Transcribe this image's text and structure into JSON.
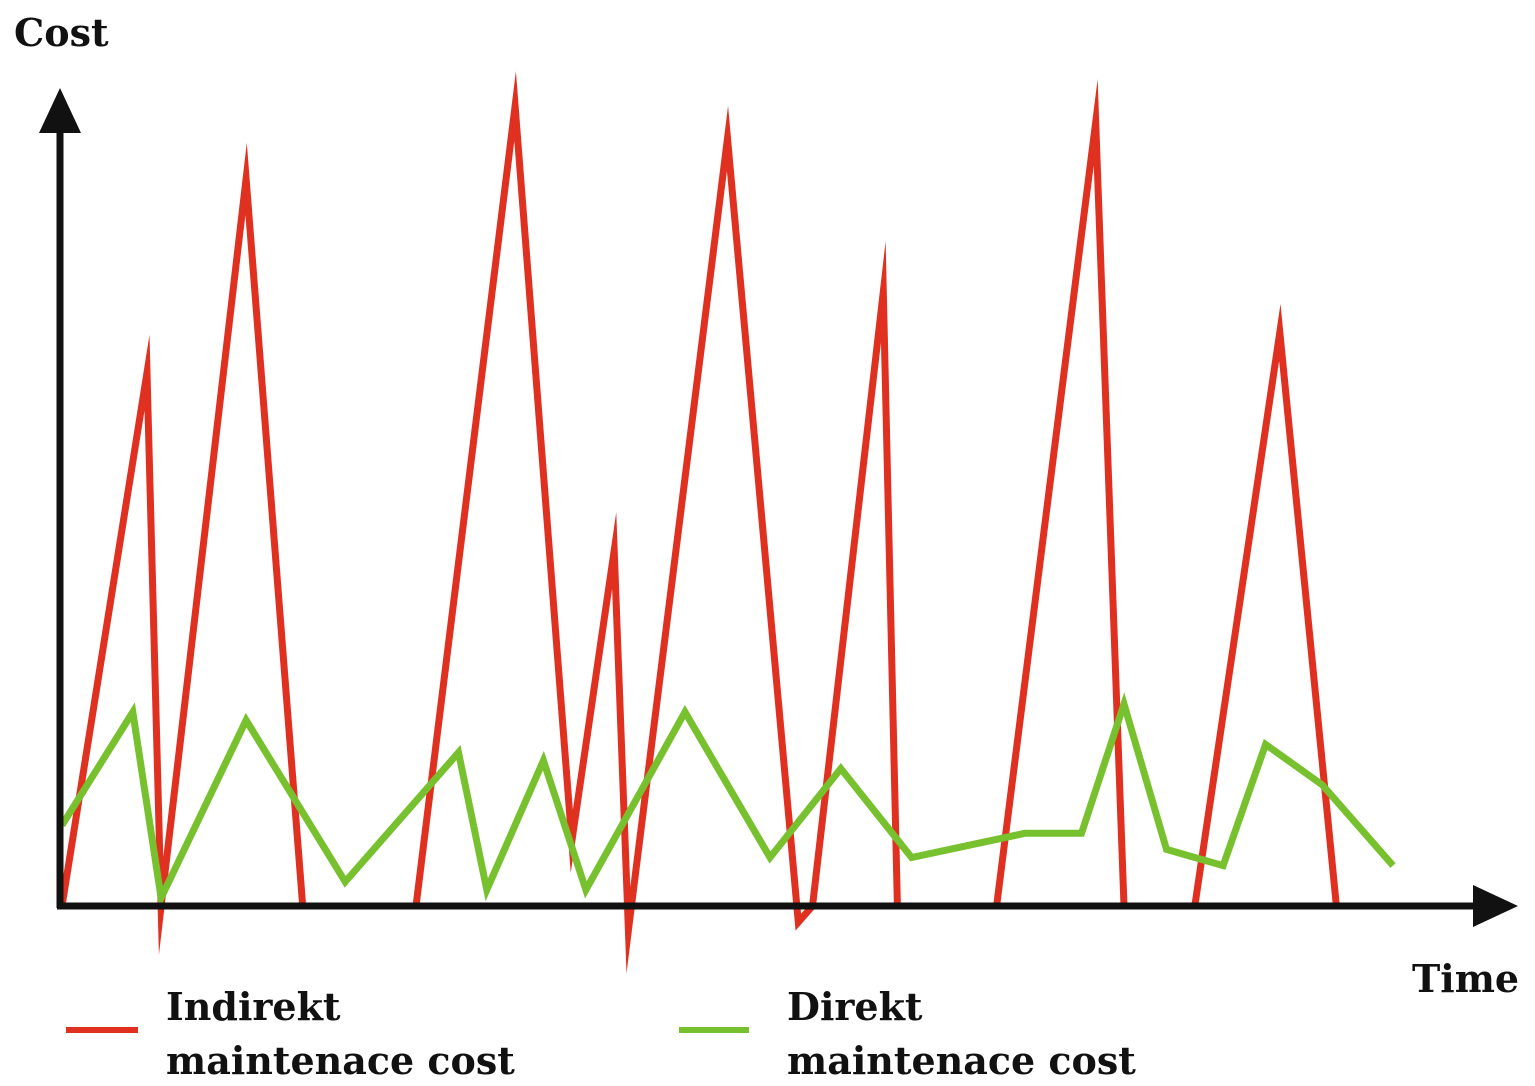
{
  "chart_data": {
    "type": "line",
    "title": "",
    "xlabel": "Time",
    "ylabel": "Cost",
    "grid": false,
    "legend_position": "bottom",
    "xlim": [
      0,
      100
    ],
    "ylim": [
      -3,
      100
    ],
    "series": [
      {
        "name_lines": [
          "Indirekt",
          "maintenace cost"
        ],
        "color": "#e03020",
        "x": [
          0,
          6,
          7,
          13,
          17,
          18,
          25,
          32,
          36,
          39,
          40,
          47,
          52,
          53,
          58,
          59,
          66,
          73,
          75,
          79,
          80,
          86,
          90,
          91
        ],
        "y": [
          0,
          66,
          0,
          90,
          0,
          0,
          0,
          99,
          8,
          44,
          -3,
          95,
          -2,
          0,
          76,
          0,
          0,
          97,
          0,
          0,
          0,
          71,
          0,
          0
        ]
      },
      {
        "name_lines": [
          "Direkt",
          "maintenace cost"
        ],
        "color": "#77c12e",
        "x": [
          0,
          5,
          7,
          13,
          20,
          28,
          30,
          34,
          37,
          44,
          50,
          55,
          60,
          68,
          72,
          75,
          78,
          82,
          85,
          89,
          94
        ],
        "y": [
          10,
          24,
          1,
          23,
          3,
          19,
          2,
          18,
          2,
          24,
          6,
          17,
          6,
          9,
          9,
          25,
          7,
          5,
          20,
          15,
          5
        ]
      }
    ]
  }
}
